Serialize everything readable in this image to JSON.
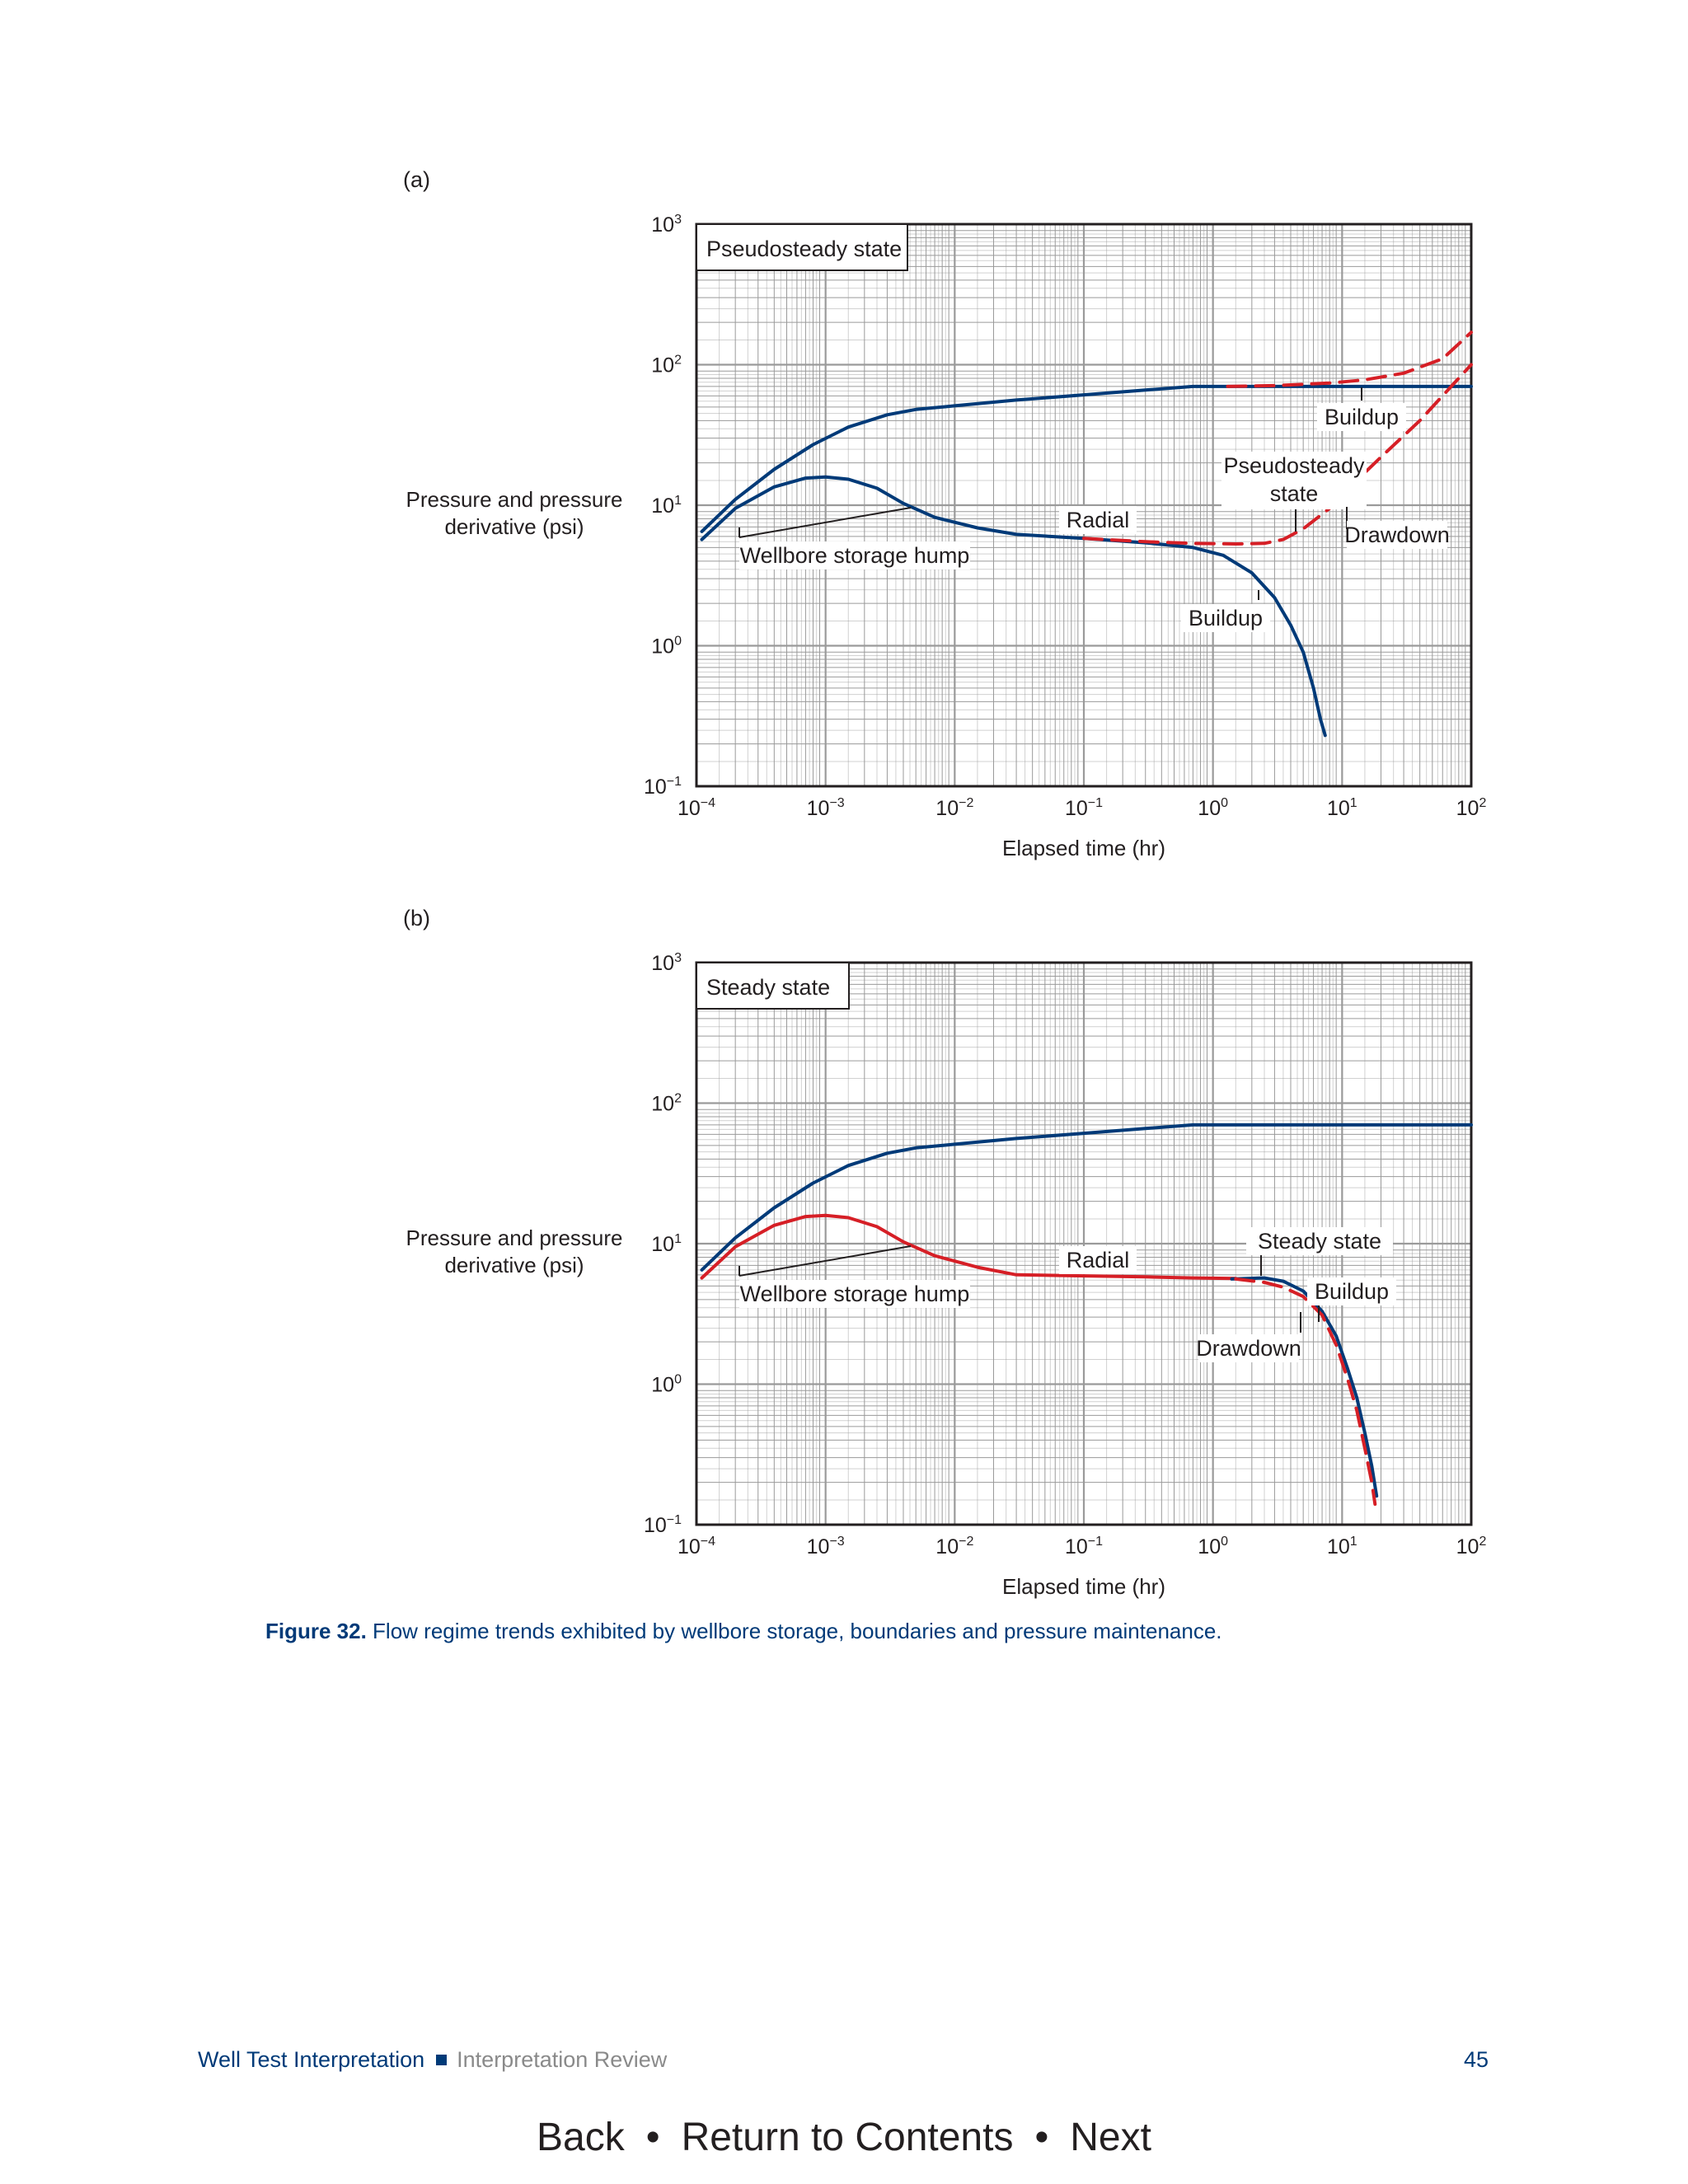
{
  "panels": [
    {
      "label": "(a)",
      "box_label": "Pseudosteady state"
    },
    {
      "label": "(b)",
      "box_label": "Steady state"
    }
  ],
  "chart_data": [
    {
      "type": "line",
      "title": "(a)",
      "box_label": "Pseudosteady state",
      "xlabel": "Elapsed time (hr)",
      "ylabel": "Pressure and pressure derivative (psi)",
      "xscale": "log",
      "yscale": "log",
      "xlim": [
        0.0001,
        100
      ],
      "ylim": [
        0.1,
        1000
      ],
      "x_ticks": [
        "10−4",
        "10−3",
        "10−2",
        "10−1",
        "100",
        "101",
        "102"
      ],
      "y_ticks": [
        "10−1",
        "100",
        "101",
        "102",
        "103"
      ],
      "grid": true,
      "series": [
        {
          "color": "#003a78",
          "style": "solid",
          "points": [
            [
              0.00011,
              6.5
            ],
            [
              0.0002,
              11
            ],
            [
              0.0004,
              18
            ],
            [
              0.0008,
              27
            ],
            [
              0.0015,
              36
            ],
            [
              0.003,
              44
            ],
            [
              0.005,
              48
            ],
            [
              0.01,
              51
            ],
            [
              0.03,
              56
            ],
            [
              0.1,
              61
            ],
            [
              0.3,
              66
            ],
            [
              0.7,
              70
            ],
            [
              2,
              70
            ],
            [
              10,
              70
            ],
            [
              100,
              70
            ]
          ]
        },
        {
          "color": "#003a78",
          "style": "solid",
          "points": [
            [
              0.00011,
              5.7
            ],
            [
              0.0002,
              9.5
            ],
            [
              0.0004,
              13.5
            ],
            [
              0.0007,
              15.6
            ],
            [
              0.001,
              15.9
            ],
            [
              0.0015,
              15.3
            ],
            [
              0.0025,
              13.2
            ],
            [
              0.004,
              10.3
            ],
            [
              0.007,
              8.2
            ],
            [
              0.015,
              6.9
            ],
            [
              0.03,
              6.2
            ],
            [
              0.1,
              5.8
            ],
            [
              0.3,
              5.4
            ],
            [
              0.7,
              5.0
            ],
            [
              1.2,
              4.4
            ],
            [
              2,
              3.3
            ],
            [
              3,
              2.2
            ],
            [
              4,
              1.4
            ],
            [
              5,
              0.9
            ],
            [
              6,
              0.5
            ],
            [
              6.8,
              0.3
            ],
            [
              7.4,
              0.23
            ]
          ]
        },
        {
          "color": "#d61f26",
          "style": "dashed",
          "points": [
            [
              0.1,
              5.8
            ],
            [
              0.3,
              5.5
            ],
            [
              0.7,
              5.35
            ],
            [
              1.5,
              5.3
            ],
            [
              2.5,
              5.35
            ],
            [
              3.5,
              5.7
            ],
            [
              5,
              6.8
            ],
            [
              8,
              9.5
            ],
            [
              12,
              14
            ],
            [
              20,
              22
            ],
            [
              40,
              40
            ],
            [
              70,
              70
            ],
            [
              100,
              100
            ]
          ]
        },
        {
          "color": "#d61f26",
          "style": "dashed",
          "points": [
            [
              1.3,
              70
            ],
            [
              3,
              71
            ],
            [
              8,
              74
            ],
            [
              15,
              78
            ],
            [
              30,
              87
            ],
            [
              60,
              110
            ],
            [
              100,
              170
            ]
          ]
        }
      ],
      "annotations": [
        "Buildup",
        "Pseudosteady state",
        "Drawdown",
        "Radial",
        "Buildup",
        "Wellbore storage hump"
      ]
    },
    {
      "type": "line",
      "title": "(b)",
      "box_label": "Steady state",
      "xlabel": "Elapsed time (hr)",
      "ylabel": "Pressure and pressure derivative (psi)",
      "xscale": "log",
      "yscale": "log",
      "xlim": [
        0.0001,
        100
      ],
      "ylim": [
        0.1,
        1000
      ],
      "x_ticks": [
        "10−4",
        "10−3",
        "10−2",
        "10−1",
        "100",
        "101",
        "102"
      ],
      "y_ticks": [
        "10−1",
        "100",
        "101",
        "102",
        "103"
      ],
      "grid": true,
      "series": [
        {
          "color": "#003a78",
          "style": "solid",
          "points": [
            [
              0.00011,
              6.5
            ],
            [
              0.0002,
              11
            ],
            [
              0.0004,
              18
            ],
            [
              0.0008,
              27
            ],
            [
              0.0015,
              36
            ],
            [
              0.003,
              44
            ],
            [
              0.005,
              48
            ],
            [
              0.01,
              51
            ],
            [
              0.03,
              56
            ],
            [
              0.1,
              61
            ],
            [
              0.3,
              66
            ],
            [
              0.7,
              70
            ],
            [
              2,
              70
            ],
            [
              10,
              70
            ],
            [
              100,
              70
            ]
          ]
        },
        {
          "color": "#d61f26",
          "style": "solid",
          "points": [
            [
              0.00011,
              5.7
            ],
            [
              0.0002,
              9.5
            ],
            [
              0.0004,
              13.5
            ],
            [
              0.0007,
              15.6
            ],
            [
              0.001,
              15.9
            ],
            [
              0.0015,
              15.3
            ],
            [
              0.0025,
              13.2
            ],
            [
              0.004,
              10.3
            ],
            [
              0.007,
              8.2
            ],
            [
              0.015,
              6.8
            ],
            [
              0.03,
              6.0
            ],
            [
              0.1,
              5.9
            ],
            [
              0.3,
              5.8
            ],
            [
              0.7,
              5.7
            ],
            [
              1.5,
              5.65
            ]
          ]
        },
        {
          "color": "#003a78",
          "style": "solid",
          "points": [
            [
              1.4,
              5.6
            ],
            [
              2.5,
              5.7
            ],
            [
              3.5,
              5.4
            ],
            [
              5,
              4.6
            ],
            [
              7,
              3.3
            ],
            [
              9,
              2.2
            ],
            [
              11,
              1.3
            ],
            [
              13,
              0.8
            ],
            [
              15,
              0.45
            ],
            [
              17,
              0.26
            ],
            [
              18.5,
              0.16
            ]
          ]
        },
        {
          "color": "#d61f26",
          "style": "dashed",
          "points": [
            [
              1.5,
              5.6
            ],
            [
              2.5,
              5.3
            ],
            [
              3.5,
              4.9
            ],
            [
              5,
              4.2
            ],
            [
              7,
              3.1
            ],
            [
              9,
              1.9
            ],
            [
              11,
              1.1
            ],
            [
              13,
              0.65
            ],
            [
              15,
              0.35
            ],
            [
              17,
              0.2
            ],
            [
              18,
              0.14
            ]
          ]
        }
      ],
      "annotations": [
        "Steady state",
        "Buildup",
        "Drawdown",
        "Radial",
        "Wellbore storage hump"
      ]
    }
  ],
  "caption": {
    "bold": "Figure 32.",
    "text": " Flow regime trends exhibited by wellbore storage, boundaries and pressure maintenance."
  },
  "footer": {
    "book": "Well Test Interpretation",
    "section": "Interpretation Review",
    "page": "45"
  },
  "nav": {
    "back": "Back",
    "contents": "Return to Contents",
    "next": "Next",
    "sep": "•"
  },
  "colors": {
    "blue": "#003a78",
    "red": "#d61f26",
    "grid": "#9a9a9a"
  }
}
